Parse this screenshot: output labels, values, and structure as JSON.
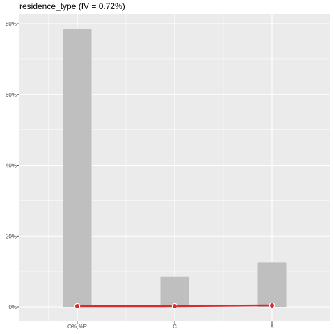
{
  "chart_data": {
    "type": "bar",
    "title": "residence_type (IV = 0.72%)",
    "categories": [
      "O%,%P",
      "C",
      "A"
    ],
    "series": [
      {
        "type": "bar",
        "values": [
          78.5,
          8.5,
          12.5
        ]
      },
      {
        "type": "line",
        "values": [
          0.2,
          0.2,
          0.4
        ]
      }
    ],
    "ylim": [
      0,
      82
    ],
    "yticks": [
      0,
      20,
      40,
      60,
      80
    ],
    "ytick_labels": [
      "0%",
      "20%",
      "40%",
      "60%",
      "80%"
    ],
    "grid": true,
    "colors": {
      "panel": "#ebebeb",
      "grid_major": "#ffffff",
      "bar": "#bfbfbf",
      "line": "#e0282c",
      "point_fill": "#e0282c",
      "point_stroke": "#ffffff"
    }
  }
}
